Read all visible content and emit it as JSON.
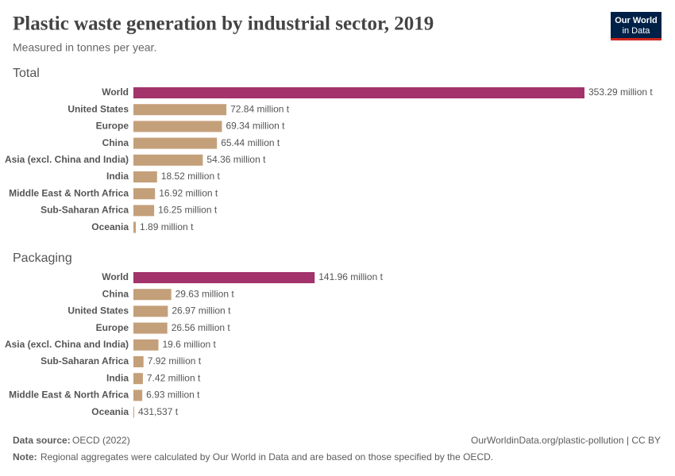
{
  "title": "Plastic waste generation by industrial sector, 2019",
  "subtitle": "Measured in tonnes per year.",
  "logo": [
    "Our World",
    "in Data"
  ],
  "source_label": "Data source:",
  "source": "OECD (2022)",
  "url": "OurWorldinData.org/plastic-pollution | CC BY",
  "note_label": "Note:",
  "note": "Regional aggregates were calculated by Our World in Data and are based on those specified by the OECD.",
  "chart_data": [
    {
      "type": "bar",
      "title": "Total",
      "categories": [
        "World",
        "United States",
        "Europe",
        "China",
        "Asia (excl. China and India)",
        "India",
        "Middle East & North Africa",
        "Sub-Saharan Africa",
        "Oceania"
      ],
      "values": [
        353290000,
        72840000,
        69340000,
        65440000,
        54360000,
        18520000,
        16920000,
        16250000,
        1890000
      ],
      "value_labels": [
        "353.29 million t",
        "72.84 million t",
        "69.34 million t",
        "65.44 million t",
        "54.36 million t",
        "18.52 million t",
        "16.92 million t",
        "16.25 million t",
        "1.89 million t"
      ],
      "colors": [
        "#a2336b",
        "#c4a07a",
        "#c4a07a",
        "#c4a07a",
        "#c4a07a",
        "#c4a07a",
        "#c4a07a",
        "#c4a07a",
        "#c4a07a"
      ]
    },
    {
      "type": "bar",
      "title": "Packaging",
      "categories": [
        "World",
        "China",
        "United States",
        "Europe",
        "Asia (excl. China and India)",
        "Sub-Saharan Africa",
        "India",
        "Middle East & North Africa",
        "Oceania"
      ],
      "values": [
        141960000,
        29630000,
        26970000,
        26560000,
        19600000,
        7920000,
        7420000,
        6930000,
        431537
      ],
      "value_labels": [
        "141.96 million t",
        "29.63 million t",
        "26.97 million t",
        "26.56 million t",
        "19.6 million t",
        "7.92 million t",
        "7.42 million t",
        "6.93 million t",
        "431,537 t"
      ],
      "colors": [
        "#a2336b",
        "#c4a07a",
        "#c4a07a",
        "#c4a07a",
        "#c4a07a",
        "#c4a07a",
        "#c4a07a",
        "#c4a07a",
        "#c4a07a"
      ]
    }
  ]
}
